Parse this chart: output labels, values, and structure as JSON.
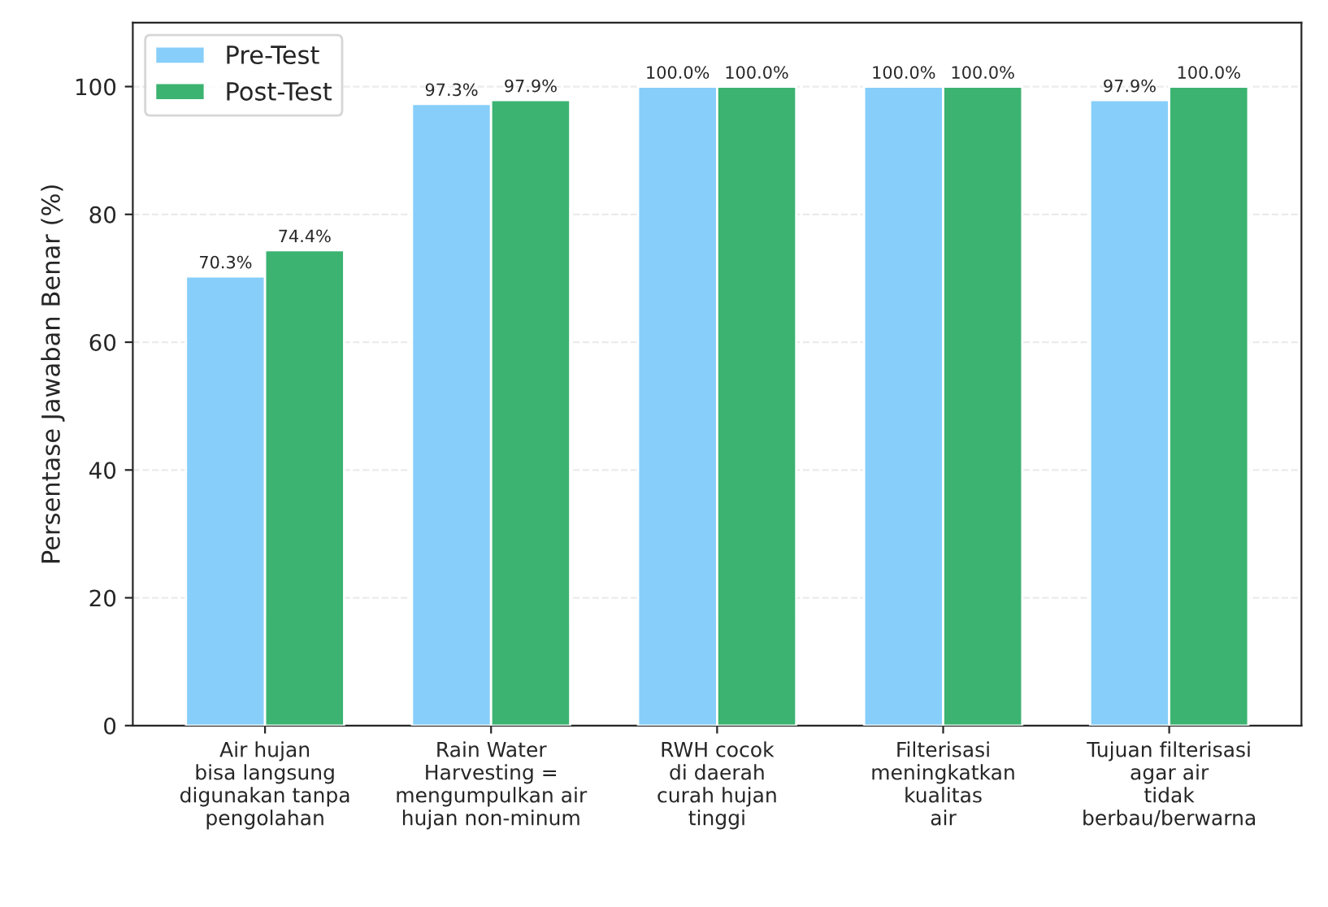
{
  "chart_data": {
    "type": "bar",
    "categories": [
      "Air hujan\nbisa langsung\ndigunakan tanpa\npengolahan",
      "Rain Water\nHarvesting =\nmengumpulkan air\nhujan non-minum",
      "RWH cocok\ndi daerah\ncurah hujan\ntinggi",
      "Filterisasi\nmeningkatkan\nkualitas\nair",
      "Tujuan filterisasi\nagar air\ntidak\nberbau/berwarna"
    ],
    "series": [
      {
        "name": "Pre-Test",
        "color": "#87cefa",
        "values": [
          70.3,
          97.3,
          100.0,
          100.0,
          97.9
        ],
        "value_labels": [
          "70.3%",
          "97.3%",
          "100.0%",
          "100.0%",
          "97.9%"
        ]
      },
      {
        "name": "Post-Test",
        "color": "#3cb371",
        "values": [
          74.4,
          97.9,
          100.0,
          100.0,
          100.0
        ],
        "value_labels": [
          "74.4%",
          "97.9%",
          "100.0%",
          "100.0%",
          "100.0%"
        ]
      }
    ],
    "ylabel": "Persentase Jawaban Benar (%)",
    "ylim": [
      0,
      110
    ],
    "yticks": [
      0,
      20,
      40,
      60,
      80,
      100
    ],
    "grid": "y",
    "legend": "top left"
  }
}
